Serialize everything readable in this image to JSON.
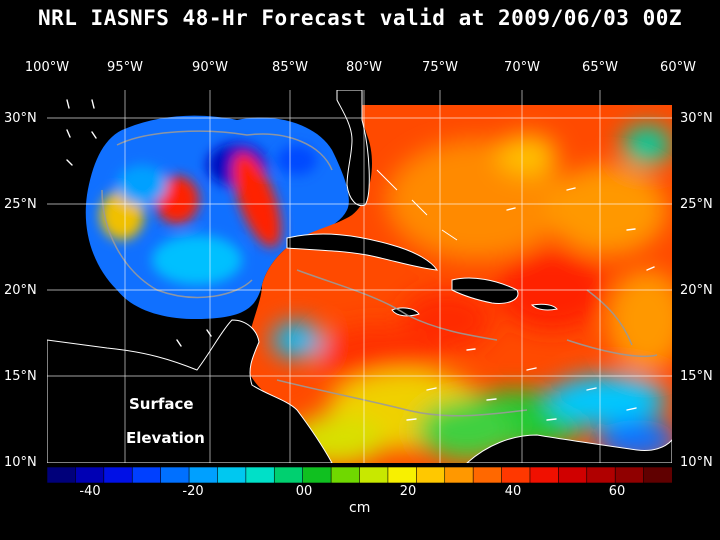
{
  "title": "NRL IASNFS  48-Hr Forecast valid at 2009/06/03 00Z",
  "longitude_labels": [
    "100°W",
    "95°W",
    "90°W",
    "85°W",
    "80°W",
    "75°W",
    "70°W",
    "65°W",
    "60°W"
  ],
  "latitude_labels": [
    "30°N",
    "25°N",
    "20°N",
    "15°N",
    "10°N"
  ],
  "map_annotation": {
    "line1": "Surface",
    "line2": "Elevation"
  },
  "colorbar": {
    "unit": "cm",
    "tick_labels": [
      "-40",
      "-20",
      "00",
      "20",
      "40",
      "60"
    ],
    "colors": [
      "#00007a",
      "#0000b4",
      "#0010e6",
      "#0040ff",
      "#0070ff",
      "#00a0ff",
      "#00c8f0",
      "#00e0c8",
      "#00d070",
      "#10c020",
      "#70d800",
      "#c8e800",
      "#f8f000",
      "#ffc800",
      "#ff9800",
      "#ff6800",
      "#ff3800",
      "#f01000",
      "#d00000",
      "#b00000",
      "#900000",
      "#600000"
    ]
  },
  "map_colors": {
    "land": "#000000",
    "deep_low": "#0030e0",
    "low": "#1070ff",
    "low_mid": "#00c0ff",
    "high": "#ff3000",
    "high_mid": "#ff9000",
    "mid": "#f0e000",
    "green": "#20c830",
    "contour": "#9a9a9a",
    "grid": "#ffffff"
  }
}
